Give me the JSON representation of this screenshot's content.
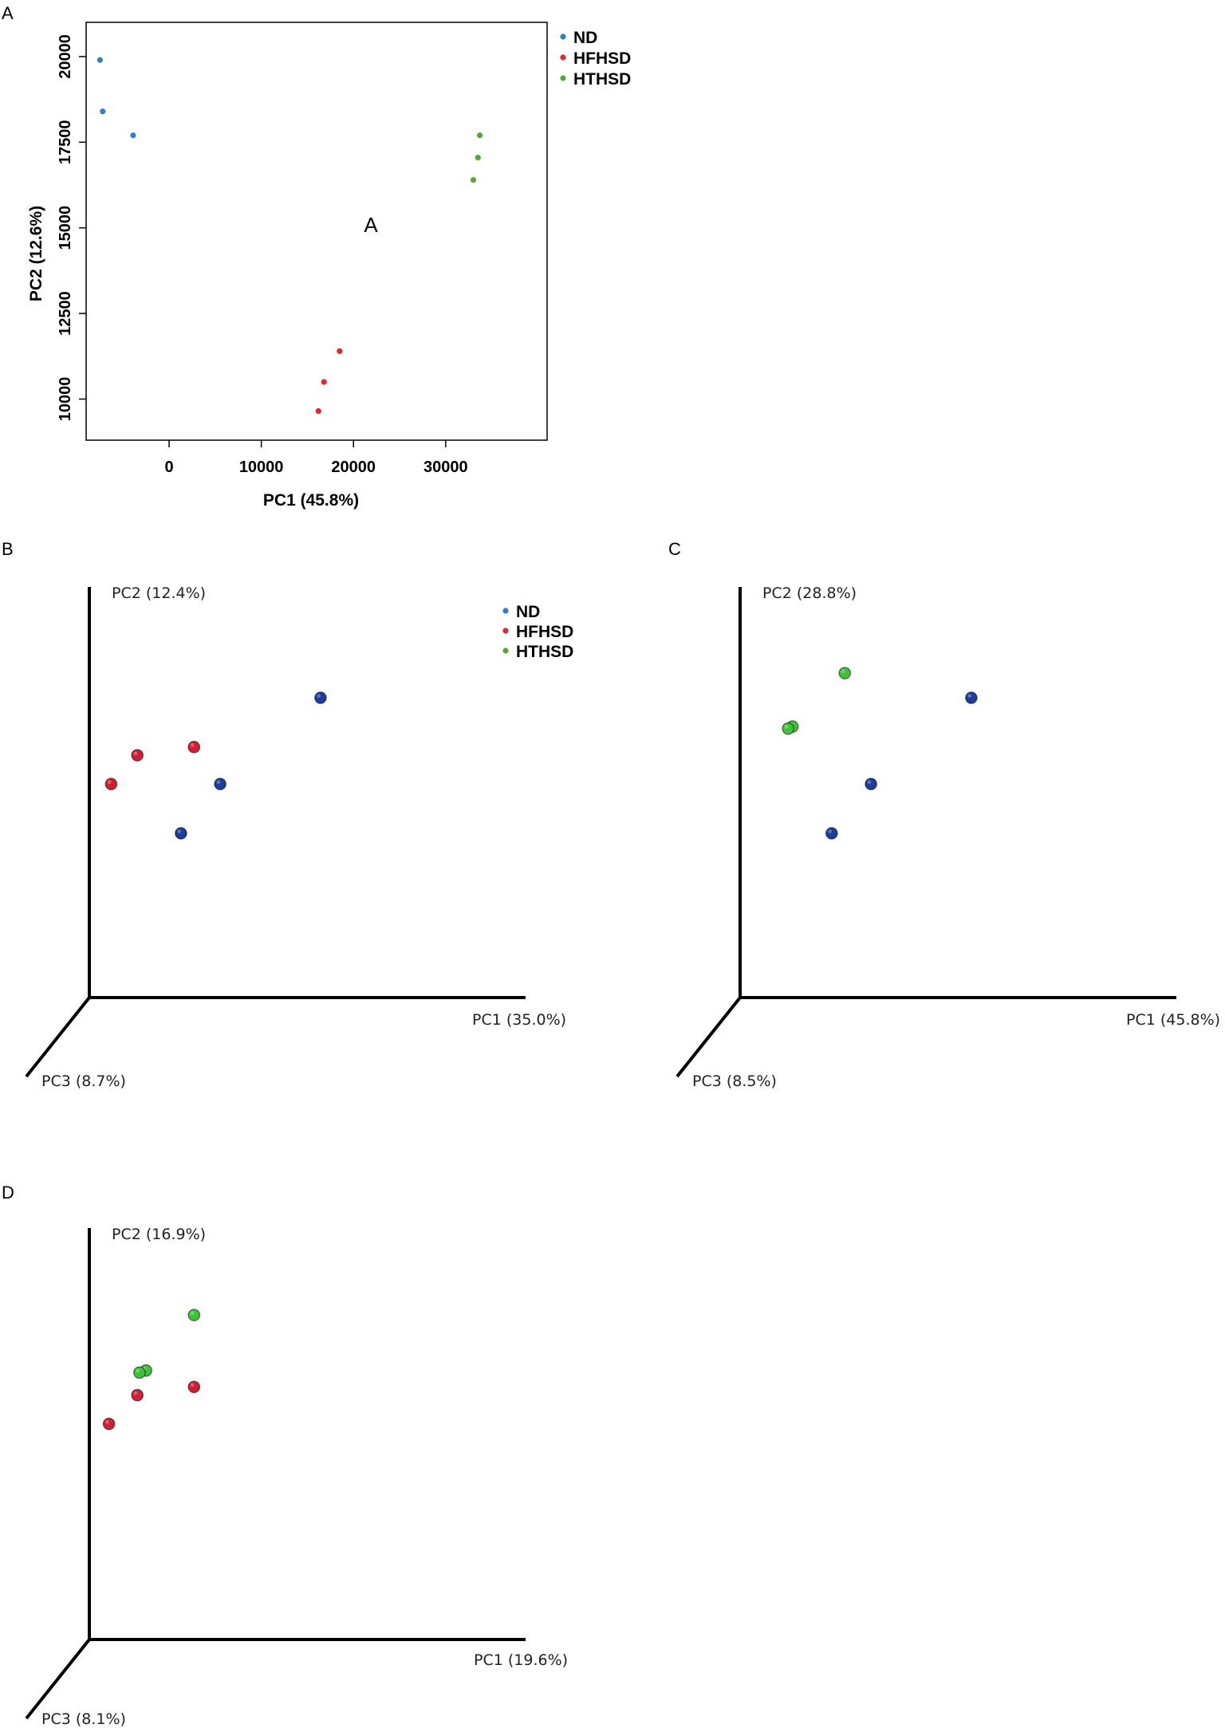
{
  "figure": {
    "panel_labels": [
      "A",
      "B",
      "C",
      "D"
    ]
  },
  "colors": {
    "ND": "#2f7fc1",
    "HFHSD": "#e0262f",
    "HTHSD": "#5aa33a",
    "ND_3d": "#1d3d9c",
    "HFHSD_3d": "#d11f35",
    "HTHSD_3d": "#3ec23a"
  },
  "chart_data": [
    {
      "id": "A",
      "type": "scatter",
      "title": "",
      "annotation": "A",
      "xlabel": "PC1 (45.8%)",
      "ylabel": "PC2 (12.6%)",
      "xlim": [
        -9000,
        41000
      ],
      "ylim": [
        8800,
        21000
      ],
      "xticks": [
        0,
        10000,
        20000,
        30000
      ],
      "yticks": [
        10000,
        12500,
        15000,
        17500,
        20000
      ],
      "legend": [
        "ND",
        "HFHSD",
        "HTHSD"
      ],
      "legend_position": "outside-top-right",
      "series": [
        {
          "name": "ND",
          "points": [
            [
              -7500,
              19900
            ],
            [
              -7200,
              18400
            ],
            [
              -3900,
              17700
            ]
          ]
        },
        {
          "name": "HFHSD",
          "points": [
            [
              18500,
              11400
            ],
            [
              16800,
              10500
            ],
            [
              16200,
              9650
            ]
          ]
        },
        {
          "name": "HTHSD",
          "points": [
            [
              33700,
              17700
            ],
            [
              33500,
              17050
            ],
            [
              33000,
              16400
            ]
          ]
        }
      ]
    },
    {
      "id": "B",
      "type": "scatter3d",
      "axes": {
        "x": "PC1 (35.0%)",
        "y": "PC2 (12.4%)",
        "z": "PC3 (8.7%)"
      },
      "legend": [
        "ND",
        "HFHSD",
        "HTHSD"
      ],
      "legend_position": "top-right",
      "series": [
        {
          "name": "ND",
          "points": [
            [
              0.53,
              0.73
            ],
            [
              0.3,
              0.52
            ],
            [
              0.21,
              0.4
            ]
          ]
        },
        {
          "name": "HFHSD",
          "points": [
            [
              0.24,
              0.61
            ],
            [
              0.11,
              0.59
            ],
            [
              0.05,
              0.52
            ]
          ]
        }
      ]
    },
    {
      "id": "C",
      "type": "scatter3d",
      "axes": {
        "x": "PC1 (45.8%)",
        "y": "PC2 (28.8%)",
        "z": "PC3 (8.5%)"
      },
      "series": [
        {
          "name": "ND",
          "points": [
            [
              0.53,
              0.73
            ],
            [
              0.3,
              0.52
            ],
            [
              0.21,
              0.4
            ]
          ]
        },
        {
          "name": "HTHSD",
          "points": [
            [
              0.24,
              0.79
            ],
            [
              0.12,
              0.66
            ],
            [
              0.11,
              0.655
            ]
          ]
        }
      ]
    },
    {
      "id": "D",
      "type": "scatter3d",
      "axes": {
        "x": "PC1 (19.6%)",
        "y": "PC2 (16.9%)",
        "z": "PC3 (8.1%)"
      },
      "series": [
        {
          "name": "HTHSD",
          "points": [
            [
              0.24,
              0.79
            ],
            [
              0.13,
              0.655
            ],
            [
              0.115,
              0.65
            ]
          ]
        },
        {
          "name": "HFHSD",
          "points": [
            [
              0.24,
              0.615
            ],
            [
              0.11,
              0.595
            ],
            [
              0.045,
              0.525
            ]
          ]
        }
      ]
    }
  ]
}
